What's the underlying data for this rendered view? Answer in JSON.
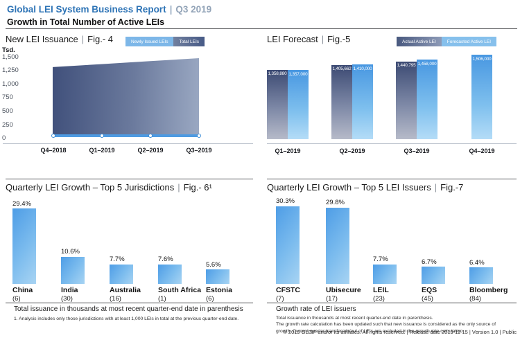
{
  "ui": {
    "pipe": "|"
  },
  "header": {
    "title": "Global LEI System Business Report",
    "separator": "|",
    "period": "Q3 2019",
    "subtitle": "Growth in Total Number of Active LEIs"
  },
  "footer": {
    "copyright": "© 2019 GLEIF and/or its affiliates. All rights reserved.  |  Release date 2019-11-15  |  Version 1.0  |  Public"
  },
  "colors": {
    "brand_blue": "#2e74b6",
    "period_gray": "#93a4b8",
    "light_blue_bar": "#4e9de6",
    "light_blue_bar_fade": "#a8d4f3",
    "dark_bar_top": "#3c4a73",
    "dark_bar_bottom": "#b6bac9",
    "issuance_line_blue": "#4e9ae1"
  },
  "chart_data": [
    {
      "id": "fig4",
      "type": "area",
      "title": "New LEI Issuance",
      "fig": "Fig.- 4",
      "legend": [
        "Newly Issued LEIs",
        "Total LEIs"
      ],
      "legend_position": "top-right",
      "y_axis_unit": "Tsd.",
      "y_ticks": [
        "1,500",
        "1,250",
        "1,000",
        "750",
        "500",
        "250",
        "0"
      ],
      "ylim": [
        0,
        1500
      ],
      "grid": false,
      "categories": [
        "Q4–2018",
        "Q1–2019",
        "Q2–2019",
        "Q3–2019"
      ],
      "series": [
        {
          "name": "Total LEIs",
          "style": "area",
          "values_tsd_estimated": [
            1310,
            1365,
            1420,
            1475
          ]
        },
        {
          "name": "Newly Issued LEIs",
          "style": "line-markers",
          "values_tsd_estimated": [
            45,
            45,
            45,
            45
          ]
        }
      ]
    },
    {
      "id": "fig5",
      "type": "bar",
      "title": "LEI Forecast",
      "fig": "Fig.-5",
      "legend": [
        "Actual Active LEI",
        "Forecasted Active LEI"
      ],
      "legend_position": "top-right",
      "categories": [
        "Q1–2019",
        "Q2–2019",
        "Q3–2019",
        "Q4–2019"
      ],
      "series": [
        {
          "name": "Actual Active LEI",
          "values": [
            1358880,
            1405662,
            1440795,
            null
          ],
          "labels": [
            "1,358,880",
            "1,405,662",
            "1,440,795",
            null
          ]
        },
        {
          "name": "Forecasted Active LEI",
          "values": [
            1357000,
            1410000,
            1458000,
            1506000
          ],
          "labels": [
            "1,357,000",
            "1,410,000",
            "1,458,000",
            "1,506,000"
          ]
        }
      ]
    },
    {
      "id": "fig6",
      "type": "bar",
      "title": "Quarterly LEI Growth – Top 5 Jurisdictions",
      "fig": "Fig.- 6¹",
      "categories": [
        "China",
        "India",
        "Australia",
        "South Africa",
        "Estonia"
      ],
      "category_notes": [
        "(6)",
        "(30)",
        "(16)",
        "(1)",
        "(6)"
      ],
      "values": [
        29.4,
        10.6,
        7.7,
        7.6,
        5.6
      ],
      "value_labels": [
        "29.4%",
        "10.6%",
        "7.7%",
        "7.6%",
        "5.6%"
      ],
      "caption": "Total issuance in thousands at most recent quarter-end date in parenthesis",
      "footnote": "1. Analysis includes only those jurisdictions with at least 1,000 LEIs in total at the previous quarter-end date."
    },
    {
      "id": "fig7",
      "type": "bar",
      "title": "Quarterly LEI Growth – Top 5 LEI Issuers",
      "fig": "Fig.-7",
      "categories": [
        "CFSTC",
        "Ubisecure",
        "LEIL",
        "EQS",
        "Bloomberg"
      ],
      "category_notes": [
        "(7)",
        "(17)",
        "(23)",
        "(45)",
        "(84)"
      ],
      "values": [
        30.3,
        29.8,
        7.7,
        6.7,
        6.4
      ],
      "value_labels": [
        "30.3%",
        "29.8%",
        "7.7%",
        "6.7%",
        "6.4%"
      ],
      "caption": "Growth rate of LEI issuers",
      "notes": [
        "Total issuance in thousands at most recent quarter-end date in parenthesis.",
        "The growth rate calculation has been updated such that new issuance is considered as the only source of growth. Current quarter transfers in/out of LEIs are excluded in the growth rate calculation."
      ]
    }
  ]
}
